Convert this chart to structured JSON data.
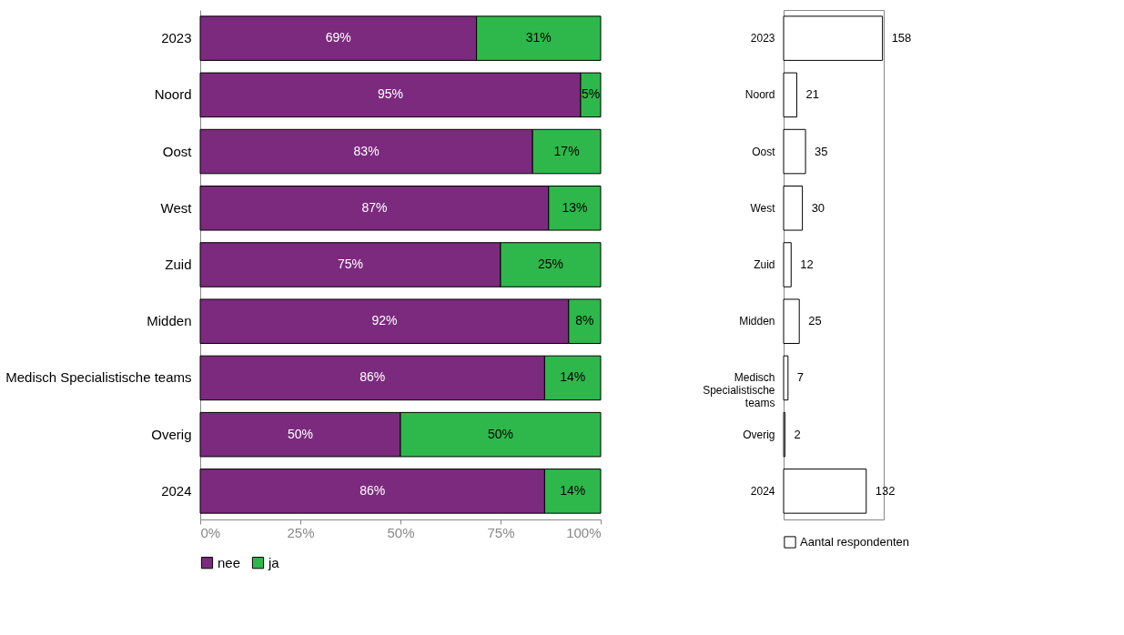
{
  "chart_data": [
    {
      "type": "bar",
      "orientation": "horizontal",
      "stacked": true,
      "categories": [
        "2023",
        "Noord",
        "Oost",
        "West",
        "Zuid",
        "Midden",
        "Medisch Specialistische teams",
        "Overig",
        "2024"
      ],
      "series": [
        {
          "name": "nee",
          "color": "#7b2a7e",
          "values": [
            69,
            95,
            83,
            87,
            75,
            92,
            86,
            50,
            86
          ],
          "value_labels": [
            "69%",
            "95%",
            "83%",
            "87%",
            "75%",
            "92%",
            "86%",
            "50%",
            "86%"
          ]
        },
        {
          "name": "ja",
          "color": "#2eb84b",
          "values": [
            31,
            5,
            17,
            13,
            25,
            8,
            14,
            50,
            14
          ],
          "value_labels": [
            "31%",
            "5%",
            "17%",
            "13%",
            "25%",
            "8%",
            "14%",
            "50%",
            "14%"
          ]
        }
      ],
      "xlim": [
        0,
        100
      ],
      "xticks": [
        {
          "value": 0,
          "label": "0%"
        },
        {
          "value": 25,
          "label": "25%"
        },
        {
          "value": 50,
          "label": "50%"
        },
        {
          "value": 75,
          "label": "75%"
        },
        {
          "value": 100,
          "label": "100%"
        }
      ],
      "legend": "bottom",
      "grid": false
    },
    {
      "type": "bar",
      "orientation": "horizontal",
      "categories": [
        "2023",
        "Noord",
        "Oost",
        "West",
        "Zuid",
        "Midden",
        "Medisch Specialistische teams",
        "Overig",
        "2024"
      ],
      "series": [
        {
          "name": "Aantal respondenten",
          "color": "#ffffff",
          "values": [
            158,
            21,
            35,
            30,
            12,
            25,
            7,
            2,
            132
          ]
        }
      ],
      "data_labels": true,
      "legend": "bottom",
      "tick_labels": "y",
      "grid": false
    }
  ]
}
